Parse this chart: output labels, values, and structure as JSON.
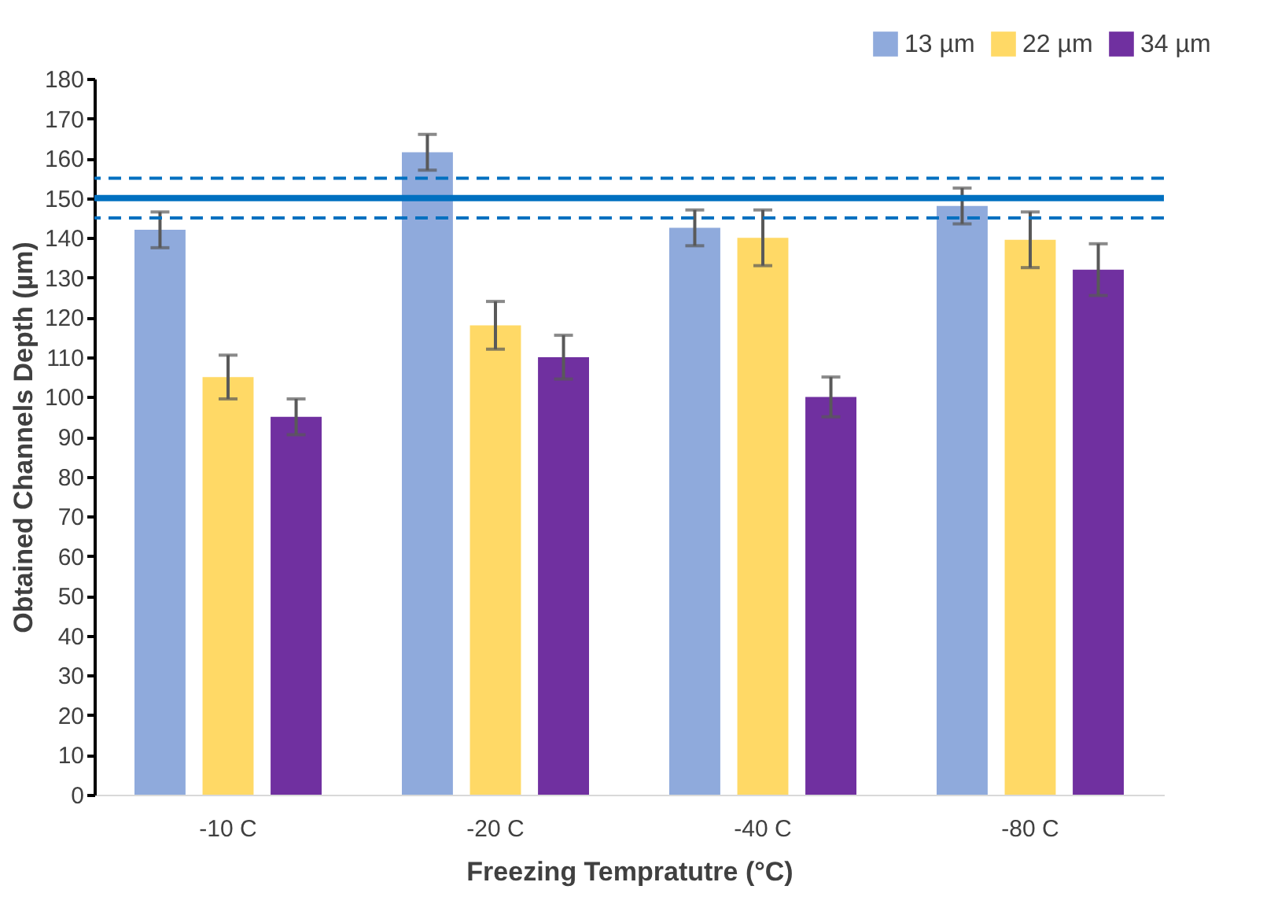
{
  "chart_data": {
    "type": "bar",
    "xlabel": "Freezing Tempratutre  (°C)",
    "ylabel": "Obtained Channels Depth (µm)",
    "categories": [
      "-10 C",
      "-20 C",
      "-40 C",
      "-80 C"
    ],
    "series": [
      {
        "name": "13 µm",
        "color": "#8faadc",
        "values": [
          142,
          161.5,
          142.5,
          148
        ],
        "errors": [
          4.5,
          4.5,
          4.5,
          4.5
        ]
      },
      {
        "name": "22 µm",
        "color": "#ffd966",
        "values": [
          105,
          118,
          140,
          139.5
        ],
        "errors": [
          5.5,
          6,
          7,
          7
        ]
      },
      {
        "name": "34 µm",
        "color": "#7030a0",
        "values": [
          95,
          110,
          100,
          132
        ],
        "errors": [
          4.5,
          5.5,
          5,
          6.5
        ]
      }
    ],
    "ylim": [
      0,
      180
    ],
    "yticks": [
      0,
      10,
      20,
      30,
      40,
      50,
      60,
      70,
      80,
      90,
      100,
      110,
      120,
      130,
      140,
      150,
      160,
      170,
      180
    ],
    "ref_lines": [
      {
        "axis": "y",
        "value": 150,
        "color": "#0070c0",
        "line_style": "solid"
      },
      {
        "axis": "y",
        "value": 155,
        "color": "#0070c0",
        "line_style": "dashed"
      },
      {
        "axis": "y",
        "value": 145,
        "color": "#0070c0",
        "line_style": "dashed"
      }
    ],
    "legend": "top right",
    "grid": false
  }
}
